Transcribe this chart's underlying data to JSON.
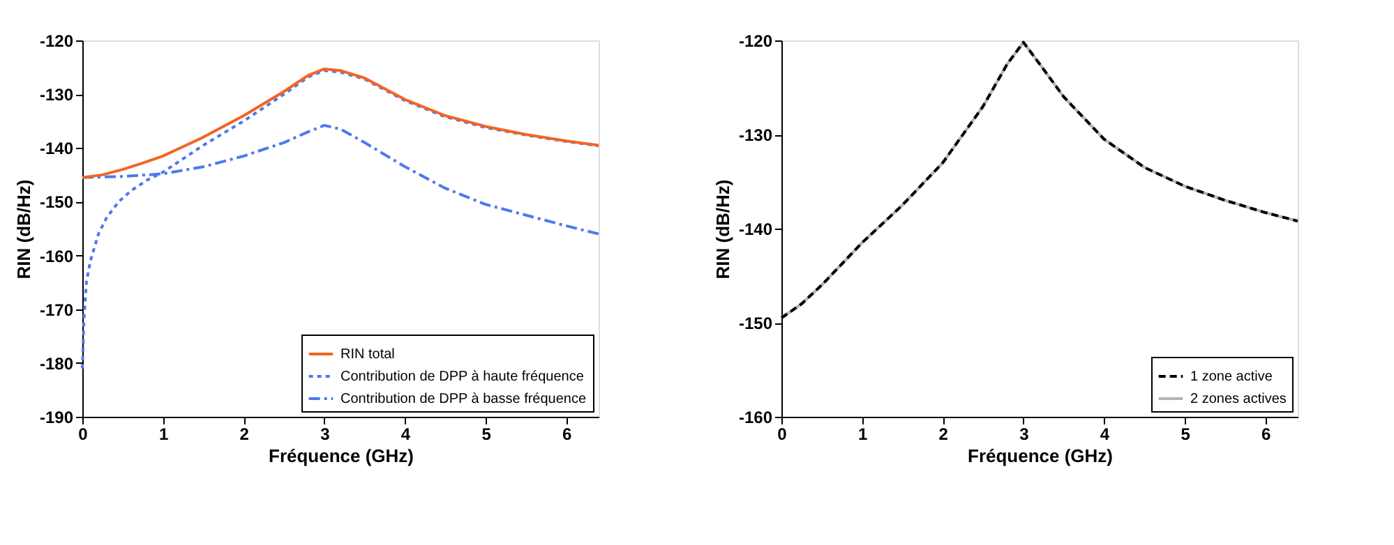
{
  "chart_data": [
    {
      "type": "line",
      "xlabel": "Fréquence (GHz)",
      "ylabel": "RIN (dB/Hz)",
      "xlim": [
        0,
        6.4
      ],
      "xticks": [
        0,
        1,
        2,
        3,
        4,
        5,
        6
      ],
      "ylim": [
        -190,
        -120
      ],
      "yticks": [
        -190,
        -180,
        -170,
        -160,
        -150,
        -140,
        -130,
        -120
      ],
      "grid": false,
      "legend": "bottom right",
      "marker": "none",
      "series": [
        {
          "name": "RIN total",
          "color": "#f26522",
          "line_style": "solid",
          "x": [
            0,
            0.25,
            0.5,
            0.75,
            1,
            1.5,
            2,
            2.5,
            2.8,
            3,
            3.2,
            3.5,
            4,
            4.5,
            5,
            5.5,
            6,
            6.4
          ],
          "values": [
            -145.5,
            -145,
            -144,
            -142.8,
            -141.5,
            -138,
            -134,
            -129.5,
            -126.5,
            -125.3,
            -125.6,
            -127,
            -131,
            -134,
            -136,
            -137.5,
            -138.7,
            -139.5
          ]
        },
        {
          "name": "Contribution de DPP à haute fréquence",
          "color": "#4d79ee",
          "line_style": "dotted",
          "x": [
            0,
            0.02,
            0.05,
            0.1,
            0.2,
            0.3,
            0.45,
            0.6,
            0.8,
            1,
            1.5,
            2,
            2.5,
            2.8,
            3,
            3.2,
            3.5,
            4,
            4.5,
            5,
            5.5,
            6,
            6.4
          ],
          "values": [
            -181,
            -172,
            -165,
            -161,
            -156,
            -153,
            -150,
            -148,
            -146,
            -144.5,
            -139.5,
            -135,
            -130,
            -126.8,
            -125.6,
            -125.9,
            -127.2,
            -131.2,
            -134.2,
            -136.2,
            -137.6,
            -138.8,
            -139.6
          ]
        },
        {
          "name": "Contribution de DPP à basse fréquence",
          "color": "#4d79ee",
          "line_style": "dashdot",
          "x": [
            0,
            0.5,
            1,
            1.5,
            2,
            2.5,
            2.8,
            3,
            3.2,
            3.5,
            4,
            4.5,
            5,
            5.5,
            6,
            6.4
          ],
          "values": [
            -145.5,
            -145.3,
            -144.8,
            -143.5,
            -141.5,
            -139,
            -137,
            -135.8,
            -136.5,
            -139,
            -143.5,
            -147.5,
            -150.5,
            -152.5,
            -154.5,
            -156
          ]
        }
      ]
    },
    {
      "type": "line",
      "xlabel": "Fréquence (GHz)",
      "ylabel": "RIN (dB/Hz)",
      "xlim": [
        0,
        6.4
      ],
      "xticks": [
        0,
        1,
        2,
        3,
        4,
        5,
        6
      ],
      "ylim": [
        -160,
        -120
      ],
      "yticks": [
        -160,
        -150,
        -140,
        -130,
        -120
      ],
      "grid": false,
      "legend": "bottom right",
      "marker": "none",
      "series": [
        {
          "name": "1 zone active",
          "color": "#000000",
          "line_style": "dashed",
          "x": [
            0,
            0.25,
            0.5,
            1,
            1.5,
            2,
            2.5,
            2.8,
            3,
            3.2,
            3.5,
            4,
            4.5,
            5,
            5.5,
            6,
            6.4
          ],
          "values": [
            -149.5,
            -148,
            -146,
            -141.5,
            -137.5,
            -133,
            -127,
            -122.5,
            -120.2,
            -122.5,
            -126,
            -130.5,
            -133.5,
            -135.5,
            -137,
            -138.3,
            -139.2
          ]
        },
        {
          "name": "2 zones actives",
          "color": "#b4b4b4",
          "line_style": "solid",
          "x": [
            0,
            0.25,
            0.5,
            1,
            1.5,
            2,
            2.5,
            2.8,
            3,
            3.2,
            3.5,
            4,
            4.5,
            5,
            5.5,
            6,
            6.4
          ],
          "values": [
            -149.5,
            -148,
            -146,
            -141.5,
            -137.5,
            -133,
            -127,
            -122.5,
            -120.2,
            -122.5,
            -126,
            -130.5,
            -133.5,
            -135.5,
            -137,
            -138.3,
            -139.2
          ]
        }
      ]
    }
  ]
}
